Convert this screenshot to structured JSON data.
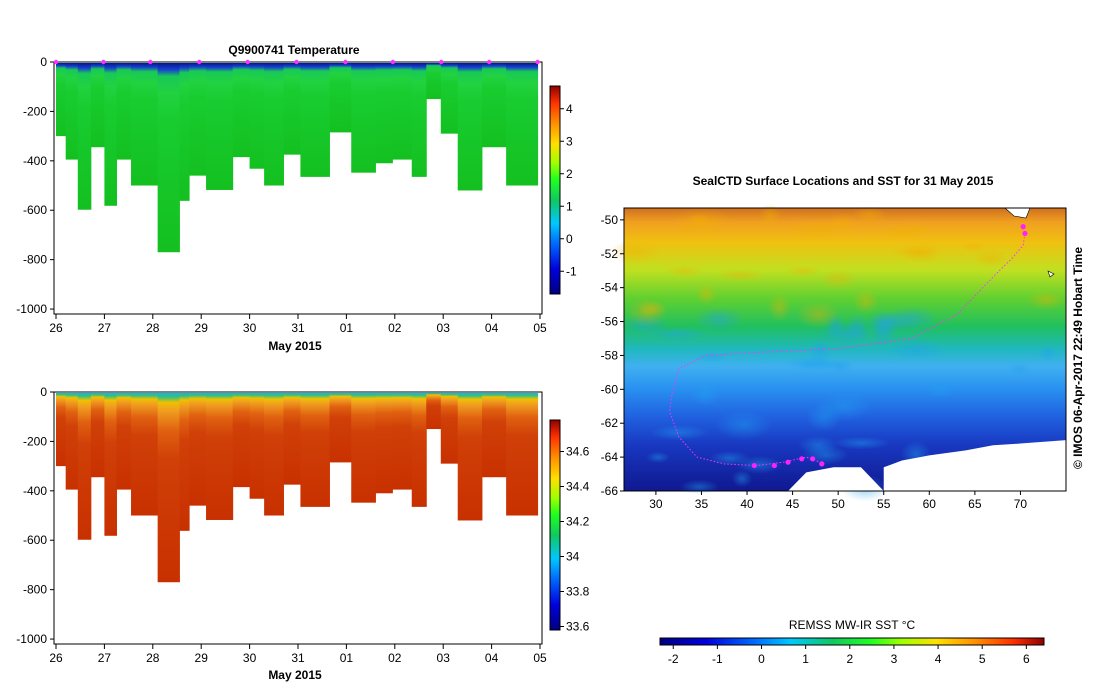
{
  "chart_data": [
    {
      "type": "heatmap",
      "title": "Q9900741  Temperature",
      "xlabel": "May 2015",
      "x_ticks": [
        "26",
        "27",
        "28",
        "29",
        "30",
        "31",
        "01",
        "02",
        "03",
        "04",
        "05"
      ],
      "ylim": [
        -1020,
        0
      ],
      "y_ticks": [
        0,
        -200,
        -400,
        -600,
        -800,
        -1000
      ],
      "colorbar_ticks": [
        4,
        3,
        2,
        1,
        0,
        -1
      ],
      "colorbar_range": [
        -1.7,
        4.7
      ],
      "profiles": [
        {
          "day": 0.0,
          "depth": 300
        },
        {
          "day": 0.2,
          "depth": 395
        },
        {
          "day": 0.45,
          "depth": 598
        },
        {
          "day": 0.72,
          "depth": 345
        },
        {
          "day": 1.0,
          "depth": 582
        },
        {
          "day": 1.25,
          "depth": 395
        },
        {
          "day": 1.55,
          "depth": 500
        },
        {
          "day": 2.1,
          "depth": 770
        },
        {
          "day": 2.55,
          "depth": 562
        },
        {
          "day": 2.75,
          "depth": 460
        },
        {
          "day": 3.1,
          "depth": 518
        },
        {
          "day": 3.65,
          "depth": 385
        },
        {
          "day": 4.0,
          "depth": 432
        },
        {
          "day": 4.3,
          "depth": 500
        },
        {
          "day": 4.7,
          "depth": 375
        },
        {
          "day": 5.05,
          "depth": 465
        },
        {
          "day": 5.65,
          "depth": 285
        },
        {
          "day": 6.1,
          "depth": 448
        },
        {
          "day": 6.6,
          "depth": 410
        },
        {
          "day": 6.95,
          "depth": 395
        },
        {
          "day": 7.35,
          "depth": 465
        },
        {
          "day": 7.65,
          "depth": 150
        },
        {
          "day": 7.95,
          "depth": 290
        },
        {
          "day": 8.3,
          "depth": 520
        },
        {
          "day": 8.8,
          "depth": 345
        },
        {
          "day": 9.3,
          "depth": 500
        }
      ],
      "profile_markers": [
        0.0,
        0.98,
        1.95,
        2.96,
        3.96,
        4.97,
        5.98,
        6.96,
        7.96,
        8.95,
        9.95
      ]
    },
    {
      "type": "heatmap",
      "title": "",
      "xlabel": "May 2015",
      "x_ticks": [
        "26",
        "27",
        "28",
        "29",
        "30",
        "31",
        "01",
        "02",
        "03",
        "04",
        "05"
      ],
      "ylim": [
        -1020,
        0
      ],
      "y_ticks": [
        0,
        -200,
        -400,
        -600,
        -800,
        -1000
      ],
      "colorbar_ticks": [
        34.6,
        34.4,
        34.2,
        34,
        33.8,
        33.6
      ],
      "colorbar_range": [
        33.58,
        34.78
      ]
    },
    {
      "type": "heatmap",
      "title": "SealCTD Surface Locations and SST for 31 May 2015",
      "x_ticks": [
        30,
        35,
        40,
        45,
        50,
        55,
        60,
        65,
        70
      ],
      "xlim": [
        26.5,
        75
      ],
      "y_ticks": [
        -50,
        -52,
        -54,
        -56,
        -58,
        -60,
        -62,
        -64,
        -66
      ],
      "ylim": [
        -66,
        -49.3
      ],
      "colorbar_label": "REMSS MW-IR SST °C",
      "colorbar_ticks": [
        -2,
        -1,
        0,
        1,
        2,
        3,
        4,
        5,
        6
      ],
      "colorbar_range": [
        -2.3,
        6.4
      ],
      "track": [
        [
          70.5,
          -50.8
        ],
        [
          70.3,
          -51.5
        ],
        [
          69.2,
          -52.2
        ],
        [
          67.5,
          -53.1
        ],
        [
          65.5,
          -54.2
        ],
        [
          63.0,
          -55.6
        ],
        [
          58.0,
          -57.0
        ],
        [
          50.0,
          -57.6
        ],
        [
          42.0,
          -57.8
        ],
        [
          35.5,
          -58.0
        ],
        [
          32.5,
          -58.8
        ],
        [
          31.8,
          -60.2
        ],
        [
          31.5,
          -61.3
        ],
        [
          32.5,
          -62.8
        ],
        [
          34.5,
          -64.0
        ],
        [
          37.5,
          -64.4
        ],
        [
          41.0,
          -64.5
        ],
        [
          44.0,
          -64.3
        ],
        [
          46.5,
          -64.0
        ],
        [
          48.5,
          -64.4
        ]
      ],
      "track_points": [
        [
          40.8,
          -64.5
        ],
        [
          43.0,
          -64.5
        ],
        [
          44.5,
          -64.3
        ],
        [
          46.0,
          -64.1
        ],
        [
          47.2,
          -64.1
        ],
        [
          48.2,
          -64.4
        ],
        [
          70.5,
          -50.8
        ],
        [
          70.3,
          -50.4
        ]
      ],
      "side_label": "© IMOS 06-Apr-2017 22:49 Hobart Time"
    }
  ]
}
